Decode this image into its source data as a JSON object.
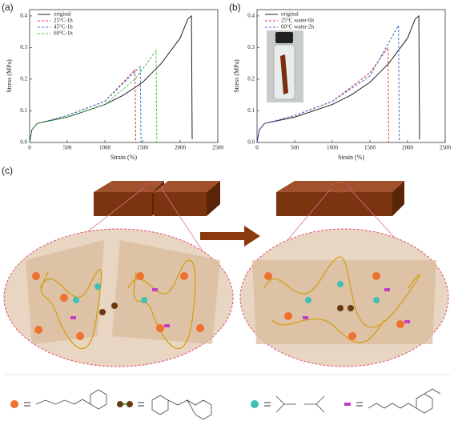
{
  "chart_data": [
    {
      "type": "line",
      "panel_label": "(a)",
      "x_label": "Strain (%)",
      "y_label": "Stress (MPa)",
      "xlim": [
        0,
        2500
      ],
      "xticks": [
        0,
        500,
        1000,
        1500,
        2000,
        2500
      ],
      "ylim": [
        0,
        0.42
      ],
      "yticks": [
        {
          "value": 0,
          "label": "0.0"
        },
        0.1,
        0.2,
        0.3,
        0.4
      ],
      "legend": "top-left",
      "series": [
        {
          "name": "original",
          "color": "#222222",
          "dashed": false,
          "x": [
            0,
            30,
            100,
            300,
            500,
            750,
            1000,
            1250,
            1500,
            1750,
            2000,
            2100,
            2150,
            2160
          ],
          "values": [
            0,
            0.04,
            0.06,
            0.07,
            0.08,
            0.1,
            0.12,
            0.15,
            0.19,
            0.25,
            0.33,
            0.39,
            0.4,
            0.01
          ]
        },
        {
          "name": "25°C-1h",
          "color": "#e0303a",
          "dashed": true,
          "x": [
            0,
            30,
            100,
            500,
            1000,
            1400,
            1410
          ],
          "values": [
            0,
            0.04,
            0.06,
            0.085,
            0.13,
            0.23,
            0
          ]
        },
        {
          "name": "45°C-1h",
          "color": "#3a6fd0",
          "dashed": true,
          "x": [
            0,
            30,
            100,
            500,
            1000,
            1470,
            1480
          ],
          "values": [
            0,
            0.04,
            0.06,
            0.085,
            0.13,
            0.24,
            0
          ]
        },
        {
          "name": "60°C-1h",
          "color": "#40c040",
          "dashed": true,
          "x": [
            0,
            30,
            100,
            500,
            1000,
            1400,
            1680,
            1690
          ],
          "values": [
            0,
            0.04,
            0.06,
            0.08,
            0.12,
            0.2,
            0.29,
            0
          ]
        }
      ]
    },
    {
      "type": "line",
      "panel_label": "(b)",
      "x_label": "Strain (%)",
      "y_label": "Stress (MPa)",
      "xlim": [
        0,
        2500
      ],
      "xticks": [
        0,
        500,
        1000,
        1500,
        2000,
        2500
      ],
      "ylim": [
        0,
        0.42
      ],
      "yticks": [
        {
          "value": 0,
          "label": "0.0"
        },
        0.1,
        0.2,
        0.3,
        0.4
      ],
      "legend": "top-left",
      "series": [
        {
          "name": "original",
          "color": "#222222",
          "dashed": false,
          "x": [
            0,
            30,
            100,
            300,
            500,
            750,
            1000,
            1250,
            1500,
            1750,
            2000,
            2100,
            2150,
            2160
          ],
          "values": [
            0,
            0.04,
            0.06,
            0.07,
            0.08,
            0.1,
            0.12,
            0.15,
            0.19,
            0.25,
            0.33,
            0.39,
            0.4,
            0.01
          ]
        },
        {
          "name": "25°C water-6h",
          "color": "#e0303a",
          "dashed": true,
          "x": [
            0,
            30,
            100,
            500,
            1000,
            1500,
            1740,
            1750
          ],
          "values": [
            0,
            0.04,
            0.06,
            0.085,
            0.13,
            0.22,
            0.3,
            0
          ]
        },
        {
          "name": "60°C water-2h",
          "color": "#3a6fd0",
          "dashed": true,
          "x": [
            0,
            30,
            100,
            500,
            1000,
            1500,
            1880,
            1890
          ],
          "values": [
            0,
            0.04,
            0.06,
            0.085,
            0.13,
            0.21,
            0.37,
            0
          ]
        }
      ]
    }
  ],
  "diagram": {
    "panel_label": "(c)"
  }
}
